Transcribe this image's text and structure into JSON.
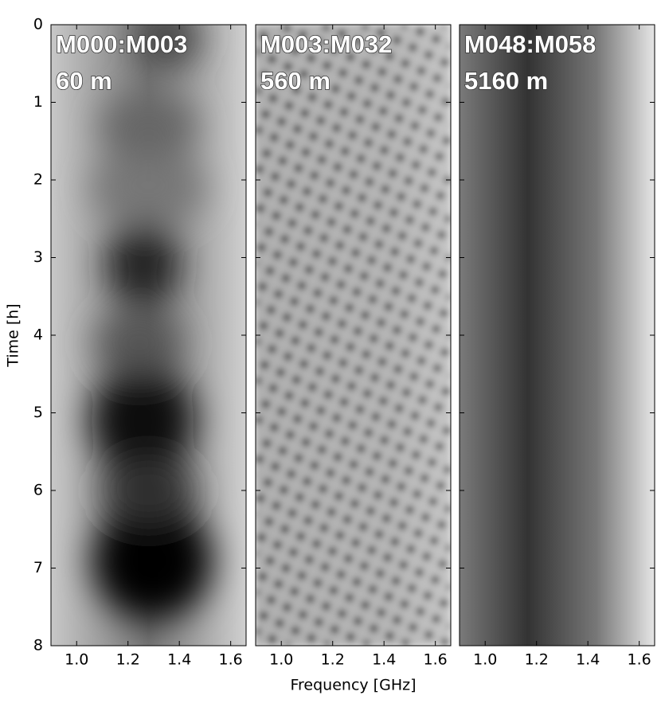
{
  "chart_data": [
    {
      "type": "heatmap",
      "title": [
        "M000:M003",
        "60 m"
      ],
      "ylabel": "Time [h]",
      "xlim": [
        0.9,
        1.66
      ],
      "xticks": [
        {
          "value": 1.0,
          "label": "1.0"
        },
        {
          "value": 1.2,
          "label": "1.2"
        },
        {
          "value": 1.4,
          "label": "1.4"
        },
        {
          "value": 1.6,
          "label": "1.6"
        }
      ],
      "ylim": [
        0,
        8
      ],
      "y_inverted": true,
      "yticks": [
        0,
        1,
        2,
        3,
        4,
        5,
        6,
        7,
        8
      ],
      "show_ytick_labels": true
    },
    {
      "type": "heatmap",
      "title": [
        "M003:M032",
        "560 m"
      ],
      "xlabel": "Frequency [GHz]",
      "xlim": [
        0.9,
        1.66
      ],
      "xticks": [
        {
          "value": 1.0,
          "label": "1.0"
        },
        {
          "value": 1.2,
          "label": "1.2"
        },
        {
          "value": 1.4,
          "label": "1.4"
        },
        {
          "value": 1.6,
          "label": "1.6"
        }
      ],
      "ylim": [
        0,
        8
      ],
      "y_inverted": true,
      "yticks": [
        0,
        1,
        2,
        3,
        4,
        5,
        6,
        7,
        8
      ],
      "show_ytick_labels": false
    },
    {
      "type": "heatmap",
      "title": [
        "M048:M058",
        "5160 m"
      ],
      "xlim": [
        0.9,
        1.66
      ],
      "xticks": [
        {
          "value": 1.0,
          "label": "1.0"
        },
        {
          "value": 1.2,
          "label": "1.2"
        },
        {
          "value": 1.4,
          "label": "1.4"
        },
        {
          "value": 1.6,
          "label": "1.6"
        }
      ],
      "ylim": [
        0,
        8
      ],
      "y_inverted": true,
      "yticks": [
        0,
        1,
        2,
        3,
        4,
        5,
        6,
        7,
        8
      ],
      "show_ytick_labels": false
    }
  ]
}
